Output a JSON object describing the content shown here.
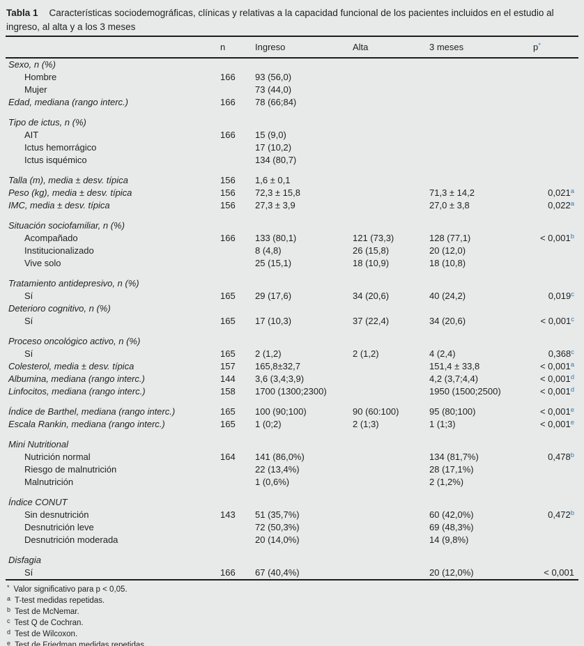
{
  "page": {
    "background": "#e8e9e9",
    "text_color": "#1f1f1f",
    "accent_blue": "#2e7eb8"
  },
  "title": {
    "label": "Tabla 1",
    "text": "Características sociodemográficas, clínicas y relativas a la capacidad funcional de los pacientes incluidos en el estudio al ingreso, al alta y a los 3 meses"
  },
  "table": {
    "header": {
      "n": "n",
      "ingreso": "Ingreso",
      "alta": "Alta",
      "meses3": "3 meses",
      "p": "p",
      "p_sup": "*"
    },
    "rows": [
      {
        "label": "Sexo, n (%)",
        "italic": true
      },
      {
        "label": "Hombre",
        "indent": true,
        "n": "166",
        "ingreso": "93 (56,0)"
      },
      {
        "label": "Mujer",
        "indent": true,
        "ingreso": "73 (44,0)"
      },
      {
        "label": "Edad, mediana (rango interc.)",
        "italic": true,
        "n": "166",
        "ingreso": "78 (66;84)"
      },
      {
        "label": "Tipo de ictus, n (%)",
        "italic": true,
        "gap": true
      },
      {
        "label": "AIT",
        "indent": true,
        "n": "166",
        "ingreso": "15 (9,0)"
      },
      {
        "label": "Ictus hemorrágico",
        "indent": true,
        "ingreso": "17 (10,2)"
      },
      {
        "label": "Ictus isquémico",
        "indent": true,
        "ingreso": "134 (80,7)"
      },
      {
        "label": "Talla (m), media ± desv. típica",
        "italic": true,
        "gap": true,
        "n": "156",
        "ingreso": "1,6 ± 0,1"
      },
      {
        "label": "Peso (kg), media ± desv. típica",
        "italic": true,
        "n": "156",
        "ingreso": "72,3 ± 15,8",
        "m3": "71,3 ± 14,2",
        "p": "0,021",
        "p_sup": "a"
      },
      {
        "label": "IMC, media ± desv. típica",
        "italic": true,
        "n": "156",
        "ingreso": "27,3 ± 3,9",
        "m3": "27,0 ± 3,8",
        "p": "0,022",
        "p_sup": "a"
      },
      {
        "label": "Situación sociofamiliar, n (%)",
        "italic": true,
        "gap": true
      },
      {
        "label": "Acompañado",
        "indent": true,
        "n": "166",
        "ingreso": "133 (80,1)",
        "alta": "121 (73,3)",
        "m3": "128 (77,1)",
        "p": "< 0,001",
        "p_sup": "b"
      },
      {
        "label": "Institucionalizado",
        "indent": true,
        "ingreso": "8 (4,8)",
        "alta": "26 (15,8)",
        "m3": "20 (12,0)"
      },
      {
        "label": "Vive solo",
        "indent": true,
        "ingreso": "25 (15,1)",
        "alta": "18 (10,9)",
        "m3": "18 (10,8)"
      },
      {
        "label": "Tratamiento antidepresivo, n (%)",
        "italic": true,
        "gap": true
      },
      {
        "label": "Sí",
        "indent": true,
        "n": "165",
        "ingreso": "29 (17,6)",
        "alta": "34 (20,6)",
        "m3": "40 (24,2)",
        "p": "0,019",
        "p_sup": "c"
      },
      {
        "label": "Deterioro cognitivo, n (%)",
        "italic": true
      },
      {
        "label": "Sí",
        "indent": true,
        "n": "165",
        "ingreso": "17 (10,3)",
        "alta": "37 (22,4)",
        "m3": "34 (20,6)",
        "p": "< 0,001",
        "p_sup": "c"
      },
      {
        "label": "Proceso oncológico activo, n (%)",
        "italic": true,
        "gap": true
      },
      {
        "label": "Sí",
        "indent": true,
        "n": "165",
        "ingreso": "2 (1,2)",
        "alta": "2 (1,2)",
        "m3": "4 (2,4)",
        "p": "0,368",
        "p_sup": "c"
      },
      {
        "label": "Colesterol, media ± desv. típica",
        "italic": true,
        "n": "157",
        "ingreso": "165,8±32,7",
        "m3": "151,4 ± 33,8",
        "p": "< 0,001",
        "p_sup": "a"
      },
      {
        "label": "Albumina, mediana (rango interc.)",
        "italic": true,
        "n": "144",
        "ingreso": "3,6 (3,4;3,9)",
        "m3": "4,2 (3,7;4,4)",
        "p": "< 0,001",
        "p_sup": "d"
      },
      {
        "label": "Linfocitos, mediana (rango interc.)",
        "italic": true,
        "n": "158",
        "ingreso": "1700 (1300;2300)",
        "m3": "1950 (1500;2500)",
        "p": "< 0,001",
        "p_sup": "d"
      },
      {
        "label": "Índice de Barthel, mediana (rango interc.)",
        "italic": true,
        "gap": true,
        "n": "165",
        "ingreso": "100 (90;100)",
        "alta": "90 (60:100)",
        "m3": "95 (80;100)",
        "p": "< 0,001",
        "p_sup": "e"
      },
      {
        "label": "Escala Rankin, mediana (rango interc.)",
        "italic": true,
        "n": "165",
        "ingreso": "1 (0;2)",
        "alta": "2 (1;3)",
        "m3": "1 (1;3)",
        "p": "< 0,001",
        "p_sup": "e"
      },
      {
        "label": "Mini Nutritional",
        "italic": true,
        "gap": true
      },
      {
        "label": "Nutrición normal",
        "indent": true,
        "n": "164",
        "ingreso": "141 (86,0%)",
        "m3": "134 (81,7%)",
        "p": "0,478",
        "p_sup": "b"
      },
      {
        "label": "Riesgo de malnutrición",
        "indent": true,
        "ingreso": "22 (13,4%)",
        "m3": "28 (17,1%)"
      },
      {
        "label": "Malnutrición",
        "indent": true,
        "ingreso": "1 (0,6%)",
        "m3": "2 (1,2%)"
      },
      {
        "label": "Índice CONUT",
        "italic": true,
        "gap": true
      },
      {
        "label": "Sin desnutrición",
        "indent": true,
        "n": "143",
        "ingreso": "51 (35,7%)",
        "m3": "60 (42,0%)",
        "p": "0,472",
        "p_sup": "b"
      },
      {
        "label": "Desnutrición leve",
        "indent": true,
        "ingreso": "72 (50,3%)",
        "m3": "69 (48,3%)"
      },
      {
        "label": "Desnutrición moderada",
        "indent": true,
        "ingreso": "20 (14,0%)",
        "m3": "14 (9,8%)"
      },
      {
        "label": "Disfagia",
        "italic": true,
        "gap": true
      },
      {
        "label": "Sí",
        "indent": true,
        "n": "166",
        "ingreso": "67 (40,4%)",
        "m3": "20 (12,0%)",
        "p": "< 0,001"
      }
    ]
  },
  "footnotes": [
    {
      "marker": "*",
      "text": "Valor significativo para p < 0,05."
    },
    {
      "marker": "a",
      "text": "T-test medidas repetidas."
    },
    {
      "marker": "b",
      "text": "Test de McNemar."
    },
    {
      "marker": "c",
      "text": "Test Q de Cochran."
    },
    {
      "marker": "d",
      "text": "Test de Wilcoxon."
    },
    {
      "marker": "e",
      "text": "Test de Friedman medidas repetidas."
    }
  ]
}
